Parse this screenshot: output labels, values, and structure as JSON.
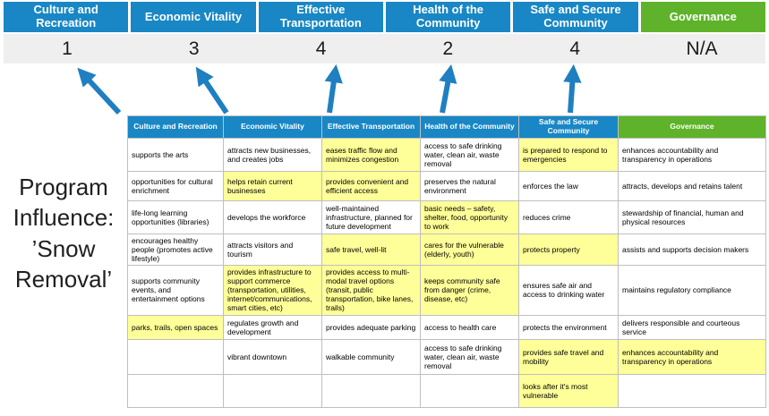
{
  "slide": {
    "program_label": "Program Influence: ’Snow Removal’"
  },
  "summary": {
    "columns": [
      {
        "label": "Culture and Recreation",
        "score": "1"
      },
      {
        "label": "Economic Vitality",
        "score": "3"
      },
      {
        "label": "Effective Transportation",
        "score": "4"
      },
      {
        "label": "Health of the Community",
        "score": "2"
      },
      {
        "label": "Safe and Secure Community",
        "score": "4"
      },
      {
        "label": "Governance",
        "score": "N/A"
      }
    ]
  },
  "icons": {
    "score_arrow": "arrow-up"
  },
  "colors": {
    "header_blue": "#1987C5",
    "governance_green": "#5EB32B",
    "highlight_yellow": "#FFFF99",
    "score_band_gray": "#EFEFEF",
    "arrow_blue": "#1F7FC0",
    "cell_border_gray": "#BFBFBF"
  },
  "table": {
    "headers": [
      "Culture and Recreation",
      "Economic Vitality",
      "Effective Transportation",
      "Health of the Community",
      "Safe and Secure Community",
      "Governance"
    ],
    "rows": [
      [
        {
          "text": "supports the arts",
          "highlight": false
        },
        {
          "text": "attracts new businesses, and creates jobs",
          "highlight": false
        },
        {
          "text": "eases traffic flow and minimizes congestion",
          "highlight": true
        },
        {
          "text": "access to safe drinking water, clean air, waste removal",
          "highlight": false
        },
        {
          "text": "is prepared to respond to emergencies",
          "highlight": true
        },
        {
          "text": "enhances accountability and transparency in operations",
          "highlight": false
        }
      ],
      [
        {
          "text": "opportunities for cultural enrichment",
          "highlight": false
        },
        {
          "text": "helps retain current businesses",
          "highlight": true
        },
        {
          "text": "provides convenient and efficient access",
          "highlight": true
        },
        {
          "text": "preserves the natural environment",
          "highlight": false
        },
        {
          "text": "enforces the law",
          "highlight": false
        },
        {
          "text": "attracts, develops and retains talent",
          "highlight": false
        }
      ],
      [
        {
          "text": "life-long learning opportunities (libraries)",
          "highlight": false
        },
        {
          "text": "develops the workforce",
          "highlight": false
        },
        {
          "text": "well-maintained infrastructure, planned for future development",
          "highlight": false
        },
        {
          "text": "basic needs – safety, shelter, food, opportunity to work",
          "highlight": true
        },
        {
          "text": "reduces crime",
          "highlight": false
        },
        {
          "text": "stewardship of financial, human and physical resources",
          "highlight": false
        }
      ],
      [
        {
          "text": "encourages healthy people (promotes active lifestyle)",
          "highlight": false
        },
        {
          "text": "attracts visitors and tourism",
          "highlight": false
        },
        {
          "text": "safe travel, well-lit",
          "highlight": true
        },
        {
          "text": "cares for the vulnerable (elderly, youth)",
          "highlight": true
        },
        {
          "text": "protects property",
          "highlight": true
        },
        {
          "text": "assists and supports decision makers",
          "highlight": false
        }
      ],
      [
        {
          "text": "supports community events, and entertainment options",
          "highlight": false
        },
        {
          "text": "provides infrastructure to support commerce (transportation, utilities, internet/communications, smart cities, etc)",
          "highlight": true
        },
        {
          "text": "provides access to multi-modal travel options (transit, public transportation, bike lanes, trails)",
          "highlight": true
        },
        {
          "text": "keeps community safe from danger (crime, disease, etc)",
          "highlight": true
        },
        {
          "text": "ensures safe air and access to drinking water",
          "highlight": false
        },
        {
          "text": "maintains regulatory compliance",
          "highlight": false
        }
      ],
      [
        {
          "text": "parks, trails, open spaces",
          "highlight": true
        },
        {
          "text": "regulates growth and development",
          "highlight": false
        },
        {
          "text": "provides adequate parking",
          "highlight": false
        },
        {
          "text": "access to health care",
          "highlight": false
        },
        {
          "text": "protects the environment",
          "highlight": false
        },
        {
          "text": "delivers responsible and courteous service",
          "highlight": false
        }
      ],
      [
        {
          "text": "",
          "highlight": false
        },
        {
          "text": "vibrant downtown",
          "highlight": false
        },
        {
          "text": "walkable community",
          "highlight": false
        },
        {
          "text": "access to safe drinking water, clean air, waste removal",
          "highlight": false
        },
        {
          "text": "provides safe travel and mobility",
          "highlight": true
        },
        {
          "text": "enhances accountability and transparency in operations",
          "highlight": true
        }
      ],
      [
        {
          "text": "",
          "highlight": false
        },
        {
          "text": "",
          "highlight": false
        },
        {
          "text": "",
          "highlight": false
        },
        {
          "text": "",
          "highlight": false
        },
        {
          "text": "looks after it's most vulnerable",
          "highlight": true
        },
        {
          "text": "",
          "highlight": false
        }
      ]
    ]
  }
}
